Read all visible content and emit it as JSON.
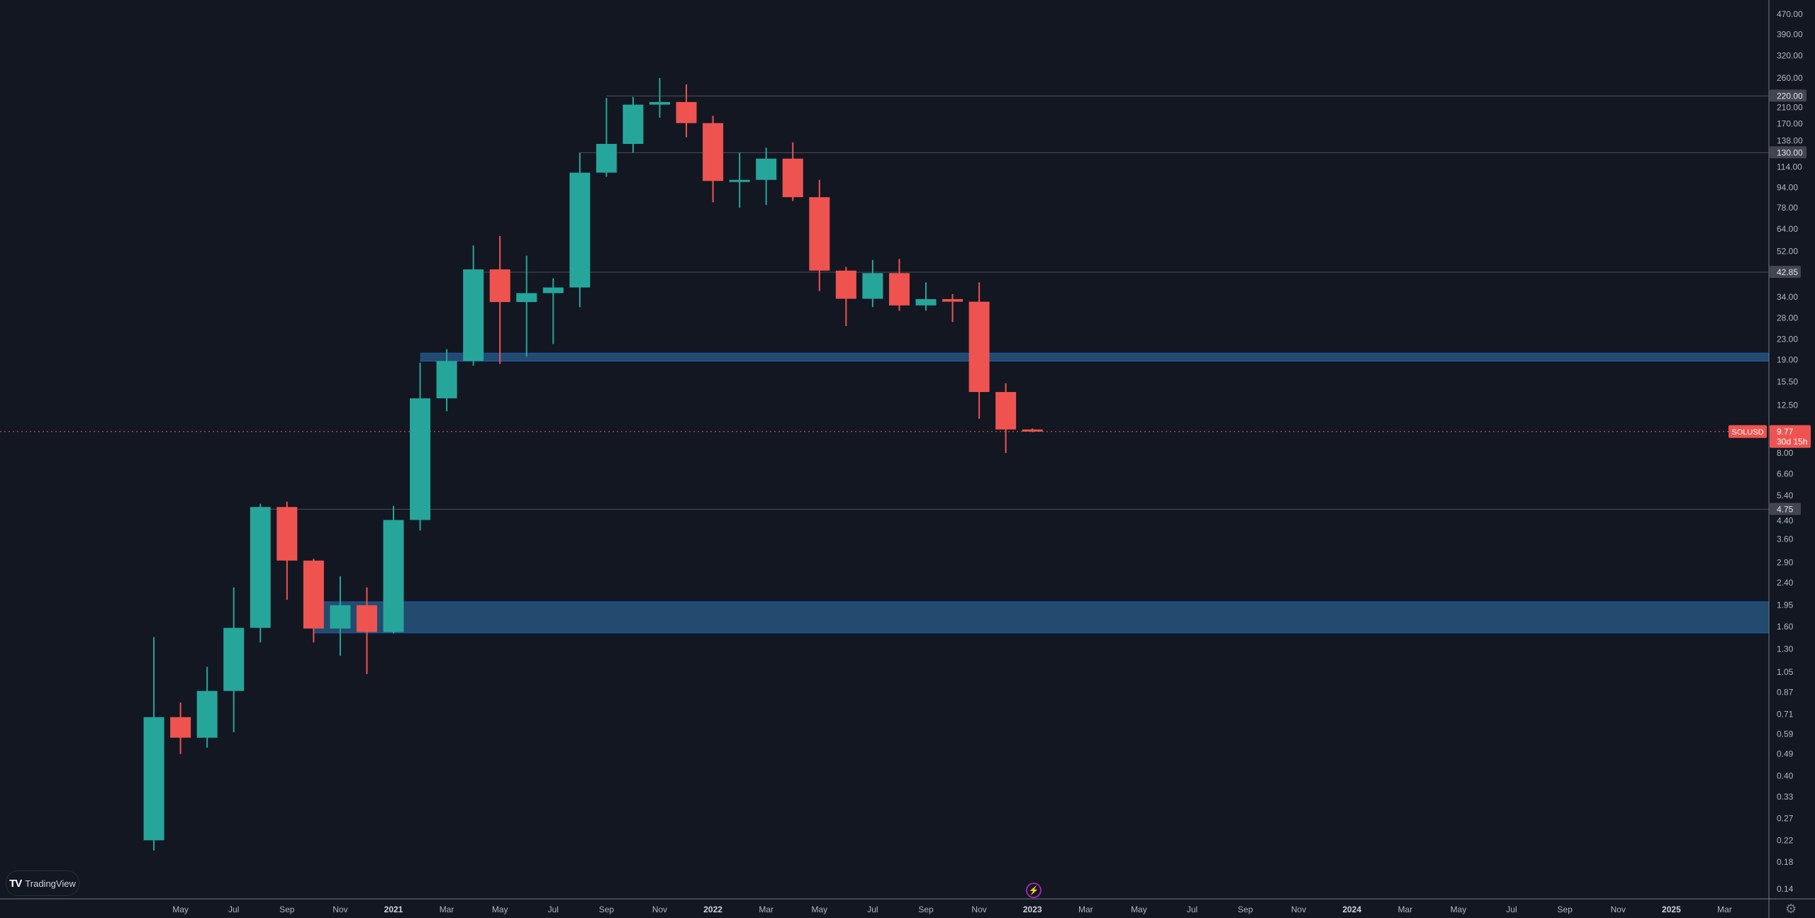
{
  "chart_data": {
    "type": "candlestick",
    "symbol": "SOLUSD",
    "interval": "monthly",
    "scale": "log",
    "ylim": [
      0.14,
      470
    ],
    "grid": false,
    "colors": {
      "up": "#26a69a",
      "down": "#ef5350",
      "background": "#131722",
      "zone": "#234a6f",
      "zone_border": "#1e53a0",
      "level_line": "#4a4e59",
      "axis_text": "#b2b5be"
    },
    "candles": [
      {
        "date": "2020-04",
        "o": 0.22,
        "h": 1.45,
        "l": 0.2,
        "c": 0.69
      },
      {
        "date": "2020-05",
        "o": 0.69,
        "h": 0.79,
        "l": 0.49,
        "c": 0.57
      },
      {
        "date": "2020-06",
        "o": 0.57,
        "h": 1.1,
        "l": 0.52,
        "c": 0.88
      },
      {
        "date": "2020-07",
        "o": 0.88,
        "h": 2.3,
        "l": 0.6,
        "c": 1.58
      },
      {
        "date": "2020-08",
        "o": 1.58,
        "h": 5.0,
        "l": 1.38,
        "c": 4.85
      },
      {
        "date": "2020-09",
        "o": 4.85,
        "h": 5.1,
        "l": 2.05,
        "c": 2.95
      },
      {
        "date": "2020-10",
        "o": 2.95,
        "h": 3.0,
        "l": 1.38,
        "c": 1.57
      },
      {
        "date": "2020-11",
        "o": 1.57,
        "h": 2.55,
        "l": 1.22,
        "c": 1.95
      },
      {
        "date": "2020-12",
        "o": 1.95,
        "h": 2.3,
        "l": 1.03,
        "c": 1.52
      },
      {
        "date": "2021-01",
        "o": 1.52,
        "h": 4.9,
        "l": 1.5,
        "c": 4.3
      },
      {
        "date": "2021-02",
        "o": 4.3,
        "h": 18.5,
        "l": 3.9,
        "c": 13.3
      },
      {
        "date": "2021-03",
        "o": 13.3,
        "h": 21.0,
        "l": 11.8,
        "c": 18.8
      },
      {
        "date": "2021-04",
        "o": 18.8,
        "h": 55.0,
        "l": 18.0,
        "c": 44.0
      },
      {
        "date": "2021-05",
        "o": 44.0,
        "h": 60.0,
        "l": 18.3,
        "c": 32.5
      },
      {
        "date": "2021-06",
        "o": 32.5,
        "h": 50.0,
        "l": 19.6,
        "c": 35.3
      },
      {
        "date": "2021-07",
        "o": 35.3,
        "h": 40.5,
        "l": 22.0,
        "c": 37.2
      },
      {
        "date": "2021-08",
        "o": 37.2,
        "h": 130.0,
        "l": 31.0,
        "c": 108.0
      },
      {
        "date": "2021-09",
        "o": 108.0,
        "h": 216.0,
        "l": 104.0,
        "c": 141.0
      },
      {
        "date": "2021-10",
        "o": 141.0,
        "h": 218.0,
        "l": 130.0,
        "c": 203.0
      },
      {
        "date": "2021-11",
        "o": 203.0,
        "h": 260.0,
        "l": 180.0,
        "c": 208.0
      },
      {
        "date": "2021-12",
        "o": 208.0,
        "h": 245.0,
        "l": 150.0,
        "c": 171.0
      },
      {
        "date": "2022-01",
        "o": 171.0,
        "h": 183.0,
        "l": 82.0,
        "c": 100.0
      },
      {
        "date": "2022-02",
        "o": 100.0,
        "h": 130.0,
        "l": 78.0,
        "c": 101.0
      },
      {
        "date": "2022-03",
        "o": 101.0,
        "h": 136.0,
        "l": 80.0,
        "c": 123.0
      },
      {
        "date": "2022-04",
        "o": 123.0,
        "h": 143.0,
        "l": 83.0,
        "c": 86.0
      },
      {
        "date": "2022-05",
        "o": 86.0,
        "h": 101.0,
        "l": 36.0,
        "c": 43.5
      },
      {
        "date": "2022-06",
        "o": 43.5,
        "h": 45.0,
        "l": 26.0,
        "c": 33.5
      },
      {
        "date": "2022-07",
        "o": 33.5,
        "h": 48.0,
        "l": 31.0,
        "c": 42.5
      },
      {
        "date": "2022-08",
        "o": 42.5,
        "h": 48.5,
        "l": 30.0,
        "c": 31.5
      },
      {
        "date": "2022-09",
        "o": 31.5,
        "h": 39.0,
        "l": 30.0,
        "c": 33.4
      },
      {
        "date": "2022-10",
        "o": 33.4,
        "h": 35.0,
        "l": 27.0,
        "c": 32.6
      },
      {
        "date": "2022-11",
        "o": 32.6,
        "h": 39.0,
        "l": 11.0,
        "c": 14.1
      },
      {
        "date": "2022-12",
        "o": 14.1,
        "h": 15.3,
        "l": 8.0,
        "c": 9.96
      },
      {
        "date": "2023-01",
        "o": 9.96,
        "h": 10.05,
        "l": 9.72,
        "c": 9.77
      }
    ],
    "price_ticks": [
      "470.00",
      "390.00",
      "320.00",
      "260.00",
      "210.00",
      "170.00",
      "138.00",
      "114.00",
      "94.00",
      "78.00",
      "64.00",
      "52.00",
      "34.00",
      "28.00",
      "23.00",
      "19.00",
      "15.50",
      "12.50",
      "8.00",
      "6.60",
      "5.40",
      "4.40",
      "3.60",
      "2.90",
      "2.40",
      "1.95",
      "1.60",
      "1.30",
      "1.05",
      "0.87",
      "0.71",
      "0.59",
      "0.49",
      "0.40",
      "0.33",
      "0.27",
      "0.22",
      "0.18",
      "0.14"
    ],
    "time_ticks": [
      {
        "date": "2020-05",
        "label": "May"
      },
      {
        "date": "2020-07",
        "label": "Jul"
      },
      {
        "date": "2020-09",
        "label": "Sep"
      },
      {
        "date": "2020-11",
        "label": "Nov"
      },
      {
        "date": "2021-01",
        "label": "2021",
        "bold": true
      },
      {
        "date": "2021-03",
        "label": "Mar"
      },
      {
        "date": "2021-05",
        "label": "May"
      },
      {
        "date": "2021-07",
        "label": "Jul"
      },
      {
        "date": "2021-09",
        "label": "Sep"
      },
      {
        "date": "2021-11",
        "label": "Nov"
      },
      {
        "date": "2022-01",
        "label": "2022",
        "bold": true
      },
      {
        "date": "2022-03",
        "label": "Mar"
      },
      {
        "date": "2022-05",
        "label": "May"
      },
      {
        "date": "2022-07",
        "label": "Jul"
      },
      {
        "date": "2022-09",
        "label": "Sep"
      },
      {
        "date": "2022-11",
        "label": "Nov"
      },
      {
        "date": "2023-01",
        "label": "2023",
        "bold": true
      },
      {
        "date": "2023-03",
        "label": "Mar"
      },
      {
        "date": "2023-05",
        "label": "May"
      },
      {
        "date": "2023-07",
        "label": "Jul"
      },
      {
        "date": "2023-09",
        "label": "Sep"
      },
      {
        "date": "2023-11",
        "label": "Nov"
      },
      {
        "date": "2024-01",
        "label": "2024",
        "bold": true
      },
      {
        "date": "2024-03",
        "label": "Mar"
      },
      {
        "date": "2024-05",
        "label": "May"
      },
      {
        "date": "2024-07",
        "label": "Jul"
      },
      {
        "date": "2024-09",
        "label": "Sep"
      },
      {
        "date": "2024-11",
        "label": "Nov"
      },
      {
        "date": "2025-01",
        "label": "2025",
        "bold": true
      },
      {
        "date": "2025-03",
        "label": "Mar"
      }
    ],
    "levels": [
      {
        "price": 220.0,
        "label": "220.00",
        "from": "2021-09"
      },
      {
        "price": 130.0,
        "label": "130.00",
        "from": "2021-08"
      },
      {
        "price": 42.85,
        "label": "42.85",
        "from": "2021-04"
      },
      {
        "price": 4.75,
        "label": "4.75",
        "from": "2020-08"
      }
    ],
    "zones": [
      {
        "top": 20.2,
        "bottom": 18.8,
        "from": "2021-02"
      },
      {
        "top": 2.01,
        "bottom": 1.51,
        "from": "2020-10"
      }
    ],
    "last_price": {
      "symbol_label": "SOLUSD",
      "price": 9.77,
      "price_label": "9.77",
      "countdown": "30d 15h"
    }
  },
  "branding": {
    "logo_text": "TradingView"
  },
  "icons": {
    "settings": "gear-icon",
    "bolt": "lightning-icon"
  }
}
